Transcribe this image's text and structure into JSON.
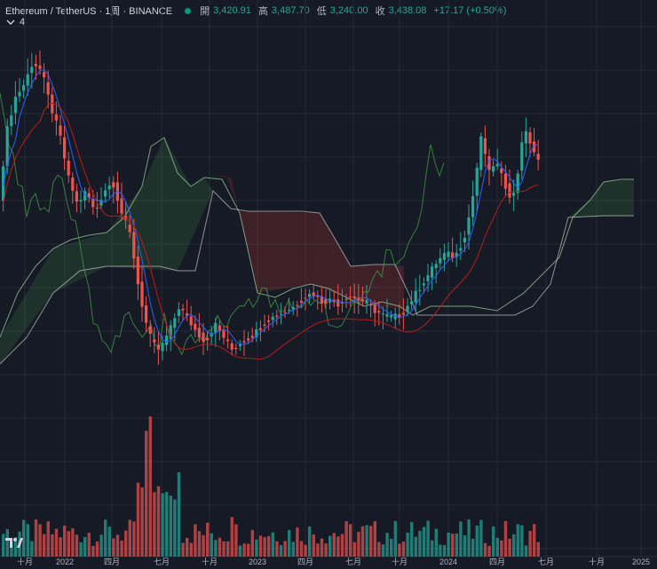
{
  "header": {
    "symbol": "Ethereum / TetherUS · 1周 · BINANCE",
    "open_label": "開",
    "open_value": "3,420.91",
    "high_label": "高",
    "high_value": "3,487.70",
    "low_label": "低",
    "low_value": "3,240.00",
    "close_label": "收",
    "close_value": "3,438.08",
    "change": "+17.17 (+0.50%)",
    "indicator_count": "4"
  },
  "colors": {
    "background": "#161a25",
    "grid": "#262b37",
    "up": "#26a69a",
    "down": "#ef5350",
    "tenkan": "#2962ff",
    "kijun": "#b71c1c",
    "lagging": "#43a047",
    "span_a": "#a5d6a7",
    "span_b": "#e0e0e0",
    "cloud_bull": "rgba(67,160,71,0.18)",
    "cloud_bear": "rgba(244,67,54,0.18)"
  },
  "chart_data": {
    "type": "candlestick",
    "interval": "1W",
    "indicators": [
      "Ichimoku Cloud",
      "Volume"
    ],
    "x_axis_ticks": [
      "十月",
      "2022",
      "四月",
      "七月",
      "十月",
      "2023",
      "四月",
      "七月",
      "十月",
      "2024",
      "四月",
      "七月",
      "十月",
      "2025"
    ],
    "last_candle": {
      "open": 3420.91,
      "high": 3487.7,
      "low": 3240.0,
      "close": 3438.08,
      "change": 17.17,
      "change_pct": 0.5
    },
    "price_range_approx": [
      850,
      4900
    ],
    "y_axis_scale": "log"
  }
}
